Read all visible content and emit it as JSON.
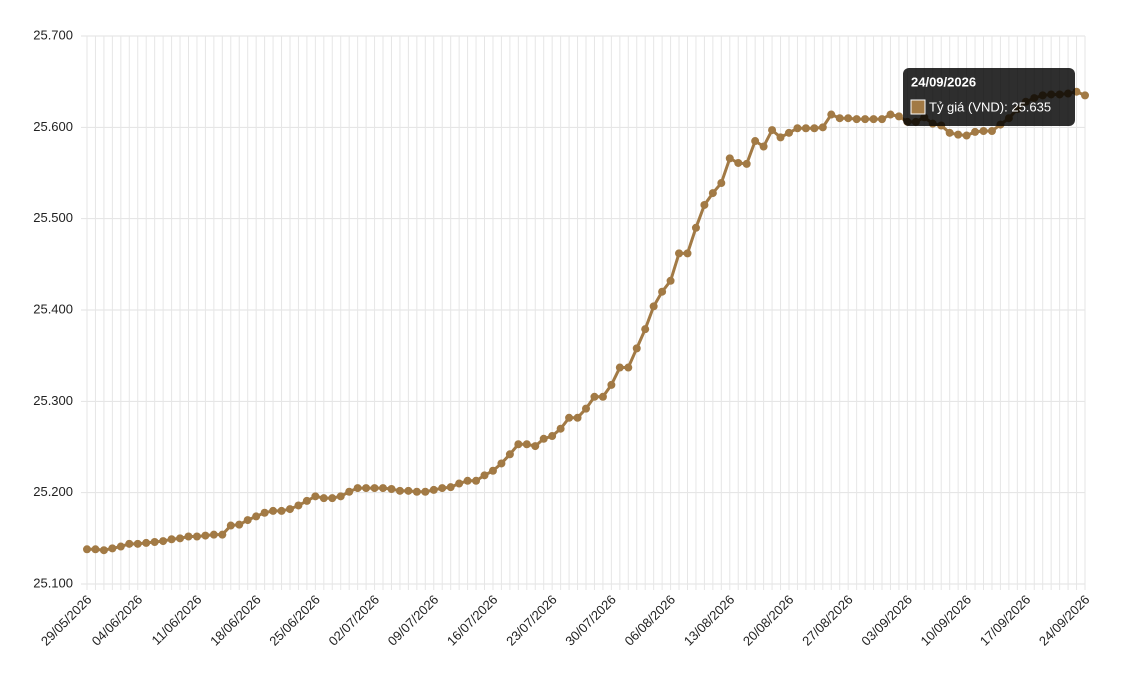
{
  "chart_data": {
    "type": "line",
    "categories": [
      "29/05/2026",
      null,
      null,
      null,
      null,
      null,
      "04/06/2026",
      null,
      null,
      null,
      null,
      null,
      null,
      "11/06/2026",
      null,
      null,
      null,
      null,
      null,
      null,
      "18/06/2026",
      null,
      null,
      null,
      null,
      null,
      null,
      "25/06/2026",
      null,
      null,
      null,
      null,
      null,
      null,
      "02/07/2026",
      null,
      null,
      null,
      null,
      null,
      null,
      "09/07/2026",
      null,
      null,
      null,
      null,
      null,
      null,
      "16/07/2026",
      null,
      null,
      null,
      null,
      null,
      null,
      "23/07/2026",
      null,
      null,
      null,
      null,
      null,
      null,
      "30/07/2026",
      null,
      null,
      null,
      null,
      null,
      null,
      "06/08/2026",
      null,
      null,
      null,
      null,
      null,
      null,
      "13/08/2026",
      null,
      null,
      null,
      null,
      null,
      null,
      "20/08/2026",
      null,
      null,
      null,
      null,
      null,
      null,
      "27/08/2026",
      null,
      null,
      null,
      null,
      null,
      null,
      "03/09/2026",
      null,
      null,
      null,
      null,
      null,
      null,
      "10/09/2026",
      null,
      null,
      null,
      null,
      null,
      null,
      "17/09/2026",
      null,
      null,
      null,
      null,
      null,
      null,
      "24/09/2026"
    ],
    "series": [
      {
        "color": "#a27a45",
        "values": [
          25138,
          25138,
          25137,
          25139,
          25141,
          25144,
          25144,
          25145,
          25146,
          25147,
          25149,
          25150,
          25152,
          25152,
          25153,
          25154,
          25154,
          25164,
          25165,
          25170,
          25174,
          25178,
          25180,
          25180,
          25182,
          25186,
          25191,
          25196,
          25194,
          25194,
          25196,
          25201,
          25205,
          25205,
          25205,
          25205,
          25204,
          25202,
          25202,
          25201,
          25201,
          25203,
          25205,
          25206,
          25210,
          25213,
          25213,
          25219,
          25224,
          25232,
          25242,
          25253,
          25253,
          25251,
          25259,
          25262,
          25270,
          25282,
          25282,
          25292,
          25305,
          25305,
          25318,
          25337,
          25337,
          25358,
          25379,
          25404,
          25420,
          25432,
          25462,
          25462,
          25490,
          25515,
          25528,
          25539,
          25566,
          25561,
          25560,
          25585,
          25579,
          25597,
          25589,
          25594,
          25599,
          25599,
          25599,
          25600,
          25614,
          25610,
          25610,
          25609,
          25609,
          25609,
          25609,
          25614,
          25612,
          25606,
          25606,
          25611,
          25604,
          25602,
          25594,
          25592,
          25591,
          25595,
          25596,
          25596,
          25603,
          25610,
          25620,
          25628,
          25632,
          25635,
          25636,
          25636,
          25637,
          25639,
          25635
        ]
      }
    ],
    "ylim": [
      25100,
      25700
    ],
    "yticks": [
      {
        "value": 25100,
        "label": "25.100"
      },
      {
        "value": 25200,
        "label": "25.200"
      },
      {
        "value": 25300,
        "label": "25.300"
      },
      {
        "value": 25400,
        "label": "25.400"
      },
      {
        "value": 25500,
        "label": "25.500"
      },
      {
        "value": 25600,
        "label": "25.600"
      },
      {
        "value": 25700,
        "label": "25.700"
      }
    ],
    "grid": true,
    "tooltip": {
      "title": "24/09/2026",
      "label": "Tỷ giá (VND): 25.635"
    }
  }
}
